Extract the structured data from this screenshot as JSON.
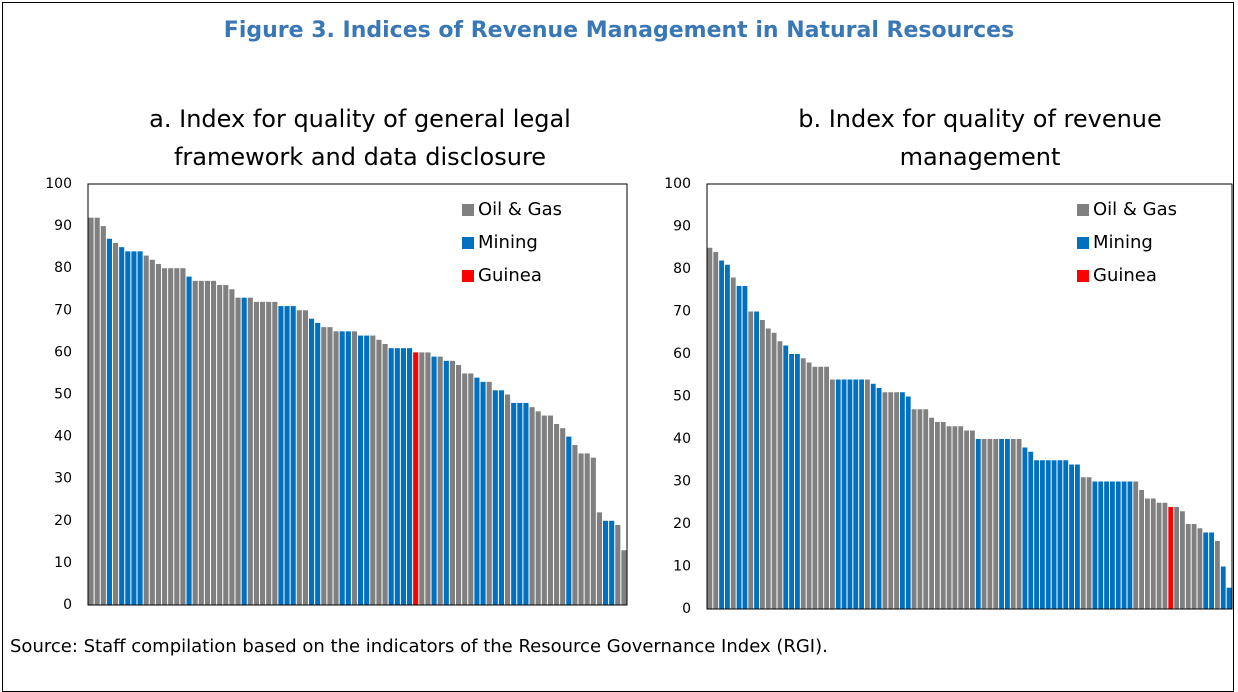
{
  "title": "Figure 3. Indices of Revenue Management in Natural Resources",
  "source": "Source: Staff compilation based on the indicators of the Resource Governance Index (RGI).",
  "chart_data": [
    {
      "type": "bar",
      "title": "a.   Index for quality of general legal framework and data disclosure",
      "ylim": [
        0,
        100
      ],
      "yticks": [
        0,
        10,
        20,
        30,
        40,
        50,
        60,
        70,
        80,
        90,
        100
      ],
      "grid": false,
      "legend": "upper right",
      "series": [
        {
          "name": "Oil & Gas",
          "color": "#808080",
          "values": [
            92,
            92,
            90,
            null,
            86,
            null,
            null,
            null,
            null,
            83,
            82,
            81,
            80,
            80,
            80,
            80,
            null,
            77,
            77,
            77,
            77,
            76,
            76,
            75,
            73,
            null,
            73,
            72,
            72,
            72,
            72,
            null,
            null,
            null,
            70,
            70,
            null,
            null,
            66,
            66,
            65,
            null,
            null,
            65,
            null,
            null,
            64,
            63,
            62,
            null,
            null,
            null,
            null,
            null,
            60,
            60,
            null,
            59,
            null,
            58,
            57,
            55,
            55,
            null,
            null,
            53,
            null,
            null,
            50,
            null,
            null,
            null,
            47,
            46,
            45,
            45,
            43,
            42,
            null,
            38,
            36,
            36,
            35,
            22,
            null,
            null,
            19,
            13
          ]
        },
        {
          "name": "Mining",
          "color": "#0070c0",
          "values": [
            null,
            null,
            null,
            87,
            null,
            85,
            84,
            84,
            84,
            null,
            null,
            null,
            null,
            null,
            null,
            null,
            78,
            null,
            null,
            null,
            null,
            null,
            null,
            null,
            null,
            73,
            null,
            null,
            null,
            null,
            null,
            71,
            71,
            71,
            null,
            null,
            68,
            67,
            null,
            null,
            null,
            65,
            65,
            null,
            64,
            64,
            null,
            null,
            null,
            61,
            61,
            61,
            61,
            null,
            null,
            null,
            59,
            null,
            58,
            null,
            null,
            null,
            null,
            54,
            53,
            null,
            51,
            51,
            null,
            48,
            48,
            48,
            null,
            null,
            null,
            null,
            null,
            null,
            40,
            null,
            null,
            null,
            null,
            null,
            20,
            20,
            null,
            null
          ]
        },
        {
          "name": "Guinea",
          "color": "#ff0000",
          "values": [
            null,
            null,
            null,
            null,
            null,
            null,
            null,
            null,
            null,
            null,
            null,
            null,
            null,
            null,
            null,
            null,
            null,
            null,
            null,
            null,
            null,
            null,
            null,
            null,
            null,
            null,
            null,
            null,
            null,
            null,
            null,
            null,
            null,
            null,
            null,
            null,
            null,
            null,
            null,
            null,
            null,
            null,
            null,
            null,
            null,
            null,
            null,
            null,
            null,
            null,
            null,
            null,
            null,
            60,
            null,
            null,
            null,
            null,
            null,
            null,
            null,
            null,
            null,
            null,
            null,
            null,
            null,
            null,
            null,
            null,
            null,
            null,
            null,
            null,
            null,
            null,
            null,
            null,
            null,
            null,
            null,
            null,
            null,
            null,
            null,
            null,
            null,
            null
          ]
        }
      ]
    },
    {
      "type": "bar",
      "title": "b.   Index for quality of revenue management",
      "ylim": [
        0,
        100
      ],
      "yticks": [
        0,
        10,
        20,
        30,
        40,
        50,
        60,
        70,
        80,
        90,
        100
      ],
      "grid": false,
      "legend": "upper right",
      "series": [
        {
          "name": "Oil & Gas",
          "color": "#808080",
          "values": [
            85,
            84,
            null,
            null,
            78,
            null,
            null,
            70,
            null,
            68,
            66,
            65,
            63,
            null,
            null,
            null,
            59,
            58,
            57,
            57,
            57,
            54,
            null,
            null,
            null,
            null,
            null,
            54,
            null,
            null,
            51,
            51,
            51,
            null,
            null,
            47,
            47,
            47,
            45,
            44,
            44,
            43,
            43,
            43,
            42,
            42,
            null,
            40,
            40,
            40,
            null,
            null,
            40,
            40,
            null,
            null,
            null,
            null,
            null,
            null,
            null,
            null,
            null,
            null,
            31,
            31,
            null,
            null,
            null,
            null,
            null,
            null,
            null,
            30,
            28,
            26,
            26,
            25,
            25,
            null,
            24,
            23,
            20,
            20,
            19,
            null,
            null,
            16,
            null,
            null
          ]
        },
        {
          "name": "Mining",
          "color": "#0070c0",
          "values": [
            null,
            null,
            82,
            81,
            null,
            76,
            76,
            null,
            70,
            null,
            null,
            null,
            null,
            62,
            60,
            60,
            null,
            null,
            null,
            null,
            null,
            null,
            54,
            54,
            54,
            54,
            54,
            null,
            53,
            52,
            null,
            null,
            null,
            51,
            50,
            null,
            null,
            null,
            null,
            null,
            null,
            null,
            null,
            null,
            null,
            null,
            40,
            null,
            null,
            null,
            40,
            40,
            null,
            null,
            38,
            37,
            35,
            35,
            35,
            35,
            35,
            35,
            34,
            34,
            null,
            null,
            30,
            30,
            30,
            30,
            30,
            30,
            30,
            null,
            null,
            null,
            null,
            null,
            null,
            null,
            null,
            null,
            null,
            null,
            null,
            18,
            18,
            null,
            10,
            5
          ]
        },
        {
          "name": "Guinea",
          "color": "#ff0000",
          "values": [
            null,
            null,
            null,
            null,
            null,
            null,
            null,
            null,
            null,
            null,
            null,
            null,
            null,
            null,
            null,
            null,
            null,
            null,
            null,
            null,
            null,
            null,
            null,
            null,
            null,
            null,
            null,
            null,
            null,
            null,
            null,
            null,
            null,
            null,
            null,
            null,
            null,
            null,
            null,
            null,
            null,
            null,
            null,
            null,
            null,
            null,
            null,
            null,
            null,
            null,
            null,
            null,
            null,
            null,
            null,
            null,
            null,
            null,
            null,
            null,
            null,
            null,
            null,
            null,
            null,
            null,
            null,
            null,
            null,
            null,
            null,
            null,
            null,
            null,
            null,
            null,
            null,
            null,
            null,
            24,
            null,
            null,
            null,
            null,
            null,
            null,
            null,
            null,
            null,
            null
          ]
        }
      ]
    }
  ]
}
